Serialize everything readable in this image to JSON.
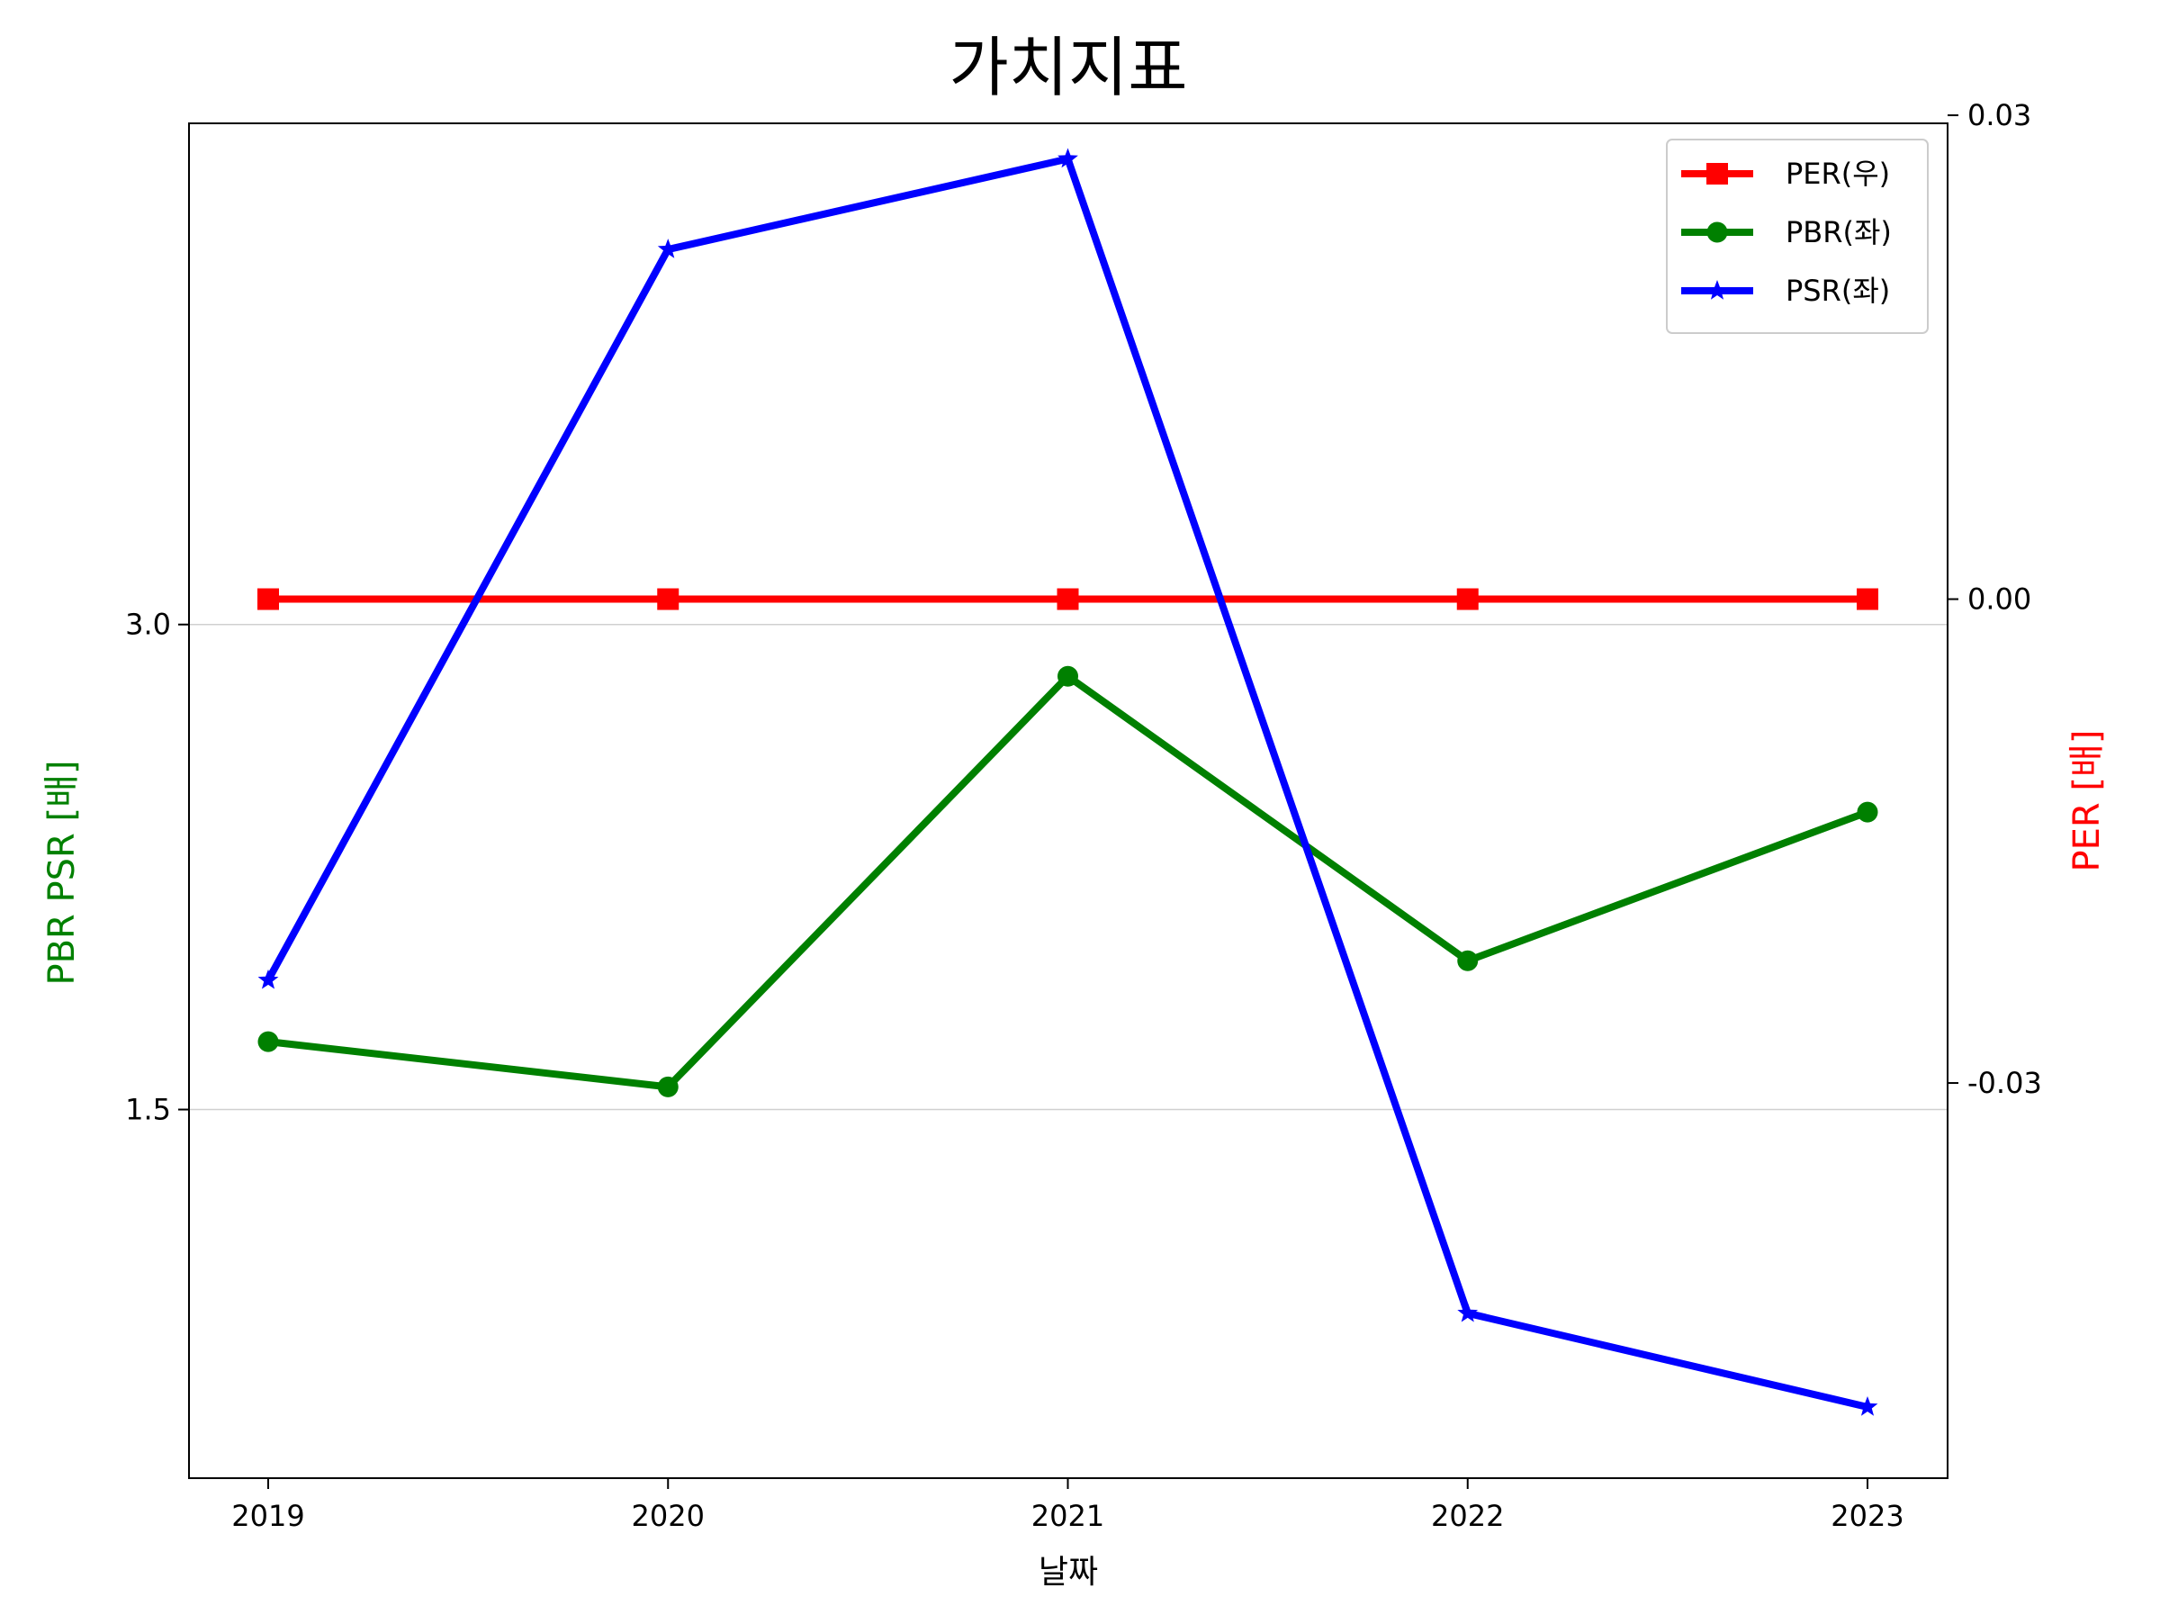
{
  "chart_data": {
    "type": "line",
    "title": "가치지표",
    "xlabel": "날짜",
    "ylabel_left": "PBR PSR [배]",
    "ylabel_right": "PER [배]",
    "categories": [
      "2019",
      "2020",
      "2021",
      "2022",
      "2023"
    ],
    "y_left": {
      "lim": [
        0.36,
        4.55
      ],
      "ticks": [
        3.0,
        1.5
      ],
      "tick_labels": [
        "3.0",
        "1.5"
      ],
      "grid": true
    },
    "y_right": {
      "lim": [
        -0.0545,
        0.0295
      ],
      "ticks": [
        0.03,
        0.0,
        -0.03
      ],
      "tick_labels": [
        "0.03",
        "0.00",
        "-0.03"
      ]
    },
    "series": [
      {
        "name": "PER(우)",
        "axis": "right",
        "marker": "square",
        "color": "#ff0000",
        "values": [
          0.0,
          0.0,
          0.0,
          0.0,
          0.0
        ]
      },
      {
        "name": "PBR(좌)",
        "axis": "left",
        "marker": "circle",
        "color": "#008000",
        "values": [
          1.71,
          1.57,
          2.84,
          1.96,
          2.42
        ]
      },
      {
        "name": "PSR(좌)",
        "axis": "left",
        "marker": "star",
        "color": "#0000ff",
        "values": [
          1.9,
          4.16,
          4.44,
          0.87,
          0.58
        ]
      }
    ],
    "legend_position": "top-right",
    "label_colors": {
      "left": "#008000",
      "right": "#ff0000"
    }
  }
}
